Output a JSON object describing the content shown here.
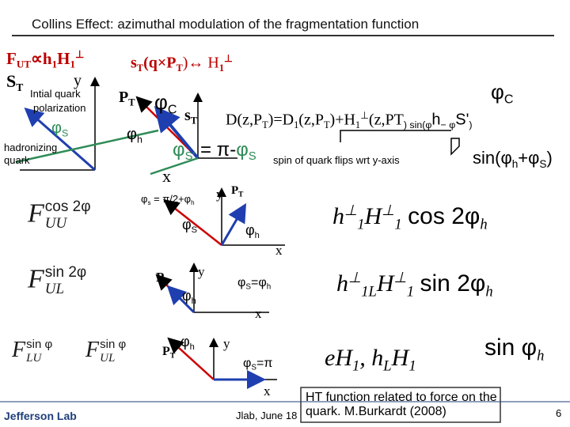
{
  "header": {
    "title": "Collins Effect: azimuthal modulation of the  fragmentation function"
  },
  "left": {
    "formula": [
      "F",
      "UT",
      "∝h",
      "1",
      "H",
      "1",
      "⊥"
    ],
    "s_t": [
      "S",
      "T"
    ],
    "y": "y",
    "initial": [
      "Intial quark",
      "polarization"
    ],
    "phi_s": [
      "φ",
      "S"
    ],
    "hadronizing": [
      "hadronizing",
      "quark"
    ]
  },
  "top": {
    "formula": [
      "s",
      "T",
      "(q×P",
      "T",
      ")↔ H",
      "1",
      "⊥"
    ],
    "pt": [
      "P",
      "T"
    ],
    "phi_c": [
      "φ",
      "C"
    ],
    "s_t": [
      "s",
      "T"
    ],
    "phi_h": [
      "φ",
      "h"
    ],
    "phi_s_prime": [
      "φ",
      "S'",
      " = π-",
      "φ",
      "S"
    ],
    "x": "x",
    "d_formula": [
      "D(z,P",
      "T",
      ")=D",
      "1",
      "(z,P",
      "T",
      ")+H",
      "1",
      "⊥",
      "(z,P",
      "T",
      ") sin(φ",
      "h",
      "− φ",
      "S'",
      ")"
    ],
    "phi_c_right": [
      "φ",
      "C"
    ],
    "spin_note": "spin of quark flips wrt  y-axis",
    "sin_sum": [
      "sin(φ",
      "h",
      "+φ",
      "S",
      ")"
    ]
  },
  "rows": [
    {
      "phi_rel": [
        "φ",
        "s",
        " = π/2+φ",
        "h"
      ],
      "y": "y",
      "pt": [
        "P",
        "T"
      ],
      "phi_s": [
        "φ",
        "S"
      ],
      "phi_h": [
        "φ",
        "h"
      ],
      "x": "x",
      "lhs": [
        "F",
        "cos 2φ",
        "UU"
      ],
      "rhs": [
        "h",
        "⊥",
        "1",
        "H",
        "⊥",
        "1",
        "cos 2φ",
        "h"
      ]
    },
    {
      "pt": [
        "P",
        "T"
      ],
      "y": "y",
      "phi_h": [
        "φ",
        "h"
      ],
      "phi_s": [
        "φ",
        "S",
        "=φ",
        "h"
      ],
      "x": "x",
      "lhs": [
        "F",
        "sin 2φ",
        "UL"
      ],
      "rhs": [
        "h",
        "⊥",
        "1L",
        "H",
        "⊥",
        "1",
        "sin 2φ",
        "h"
      ]
    },
    {
      "pt": [
        "P",
        "T"
      ],
      "phi_h": [
        "φ",
        "h"
      ],
      "y": "y",
      "phi_s": [
        "φ",
        "S",
        "=π"
      ],
      "x": "x",
      "lhs": [
        "F",
        "sin φ",
        "LU"
      ],
      "lhs2": [
        "F",
        "sin φ",
        "UL"
      ],
      "rhs": [
        "e",
        "H",
        "1",
        ", ",
        "h",
        "L",
        "H",
        "1",
        "sin φ",
        "h"
      ]
    }
  ],
  "note": "HT function related to force on the quark.  M.Burkardt (2008)",
  "footer": {
    "lab": "Jefferson Lab",
    "event": "Jlab, June 18",
    "page": "6"
  }
}
